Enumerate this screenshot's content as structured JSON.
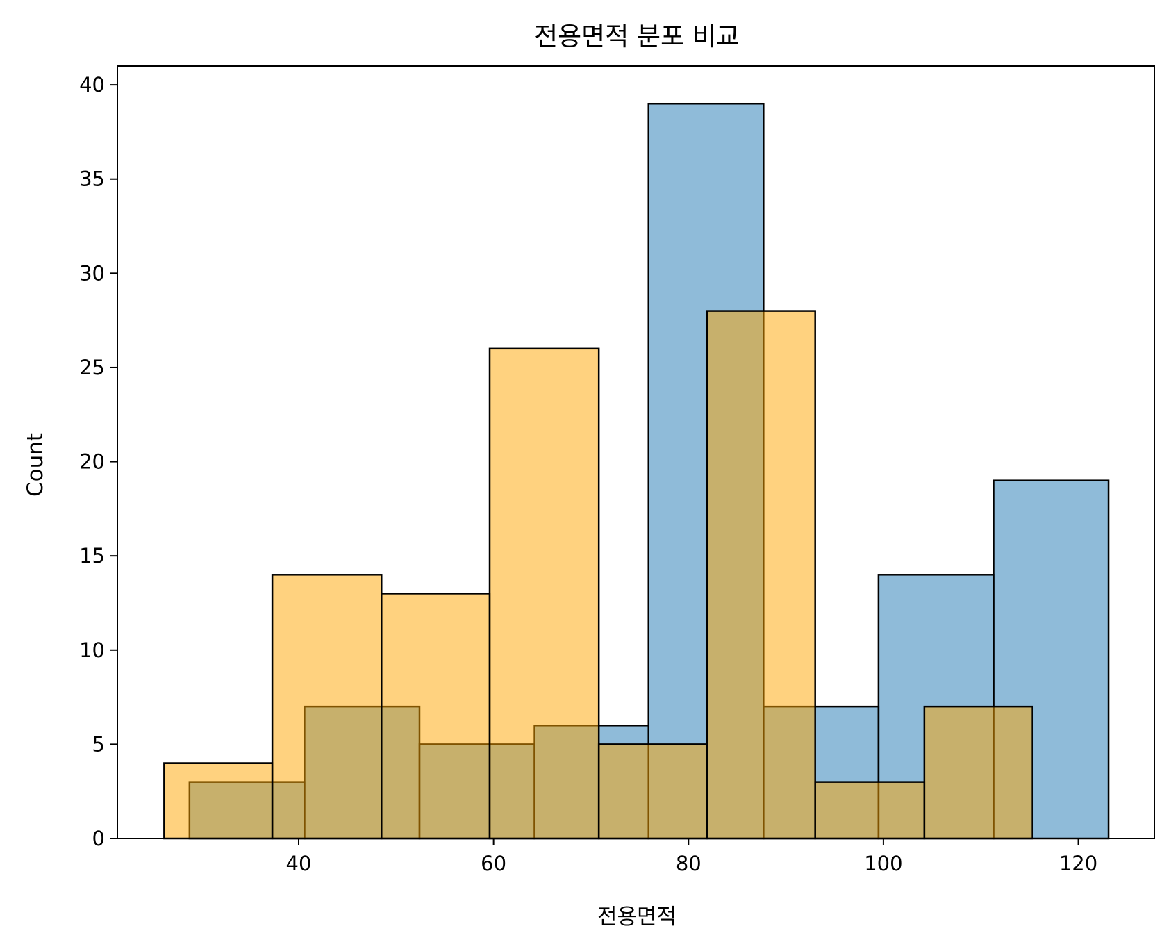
{
  "chart_data": {
    "type": "bar",
    "title": "전용면적 분포 비교",
    "xlabel": "전용면적",
    "ylabel": "Count",
    "xlim": [
      21.4,
      127.8
    ],
    "ylim": [
      0,
      41
    ],
    "x_ticks": [
      40,
      60,
      80,
      100,
      120
    ],
    "y_ticks": [
      0,
      5,
      10,
      15,
      20,
      25,
      30,
      35,
      40
    ],
    "grid": false,
    "legend": null,
    "series": [
      {
        "color": "#1f77b4",
        "opacity": 0.5,
        "bins": [
          {
            "x0": 28.8,
            "x1": 40.6,
            "count": 3
          },
          {
            "x0": 40.6,
            "x1": 52.4,
            "count": 7
          },
          {
            "x0": 52.4,
            "x1": 64.2,
            "count": 5
          },
          {
            "x0": 64.2,
            "x1": 75.9,
            "count": 6
          },
          {
            "x0": 75.9,
            "x1": 87.7,
            "count": 39
          },
          {
            "x0": 87.7,
            "x1": 99.5,
            "count": 7
          },
          {
            "x0": 99.5,
            "x1": 111.3,
            "count": 14
          },
          {
            "x0": 111.3,
            "x1": 123.1,
            "count": 19
          }
        ]
      },
      {
        "color": "#ffa500",
        "opacity": 0.5,
        "bins": [
          {
            "x0": 26.2,
            "x1": 37.3,
            "count": 4
          },
          {
            "x0": 37.3,
            "x1": 48.5,
            "count": 14
          },
          {
            "x0": 48.5,
            "x1": 59.6,
            "count": 13
          },
          {
            "x0": 59.6,
            "x1": 70.8,
            "count": 26
          },
          {
            "x0": 70.8,
            "x1": 81.9,
            "count": 5
          },
          {
            "x0": 81.9,
            "x1": 93.0,
            "count": 28
          },
          {
            "x0": 93.0,
            "x1": 104.2,
            "count": 3
          },
          {
            "x0": 104.2,
            "x1": 115.3,
            "count": 7
          }
        ]
      }
    ]
  }
}
